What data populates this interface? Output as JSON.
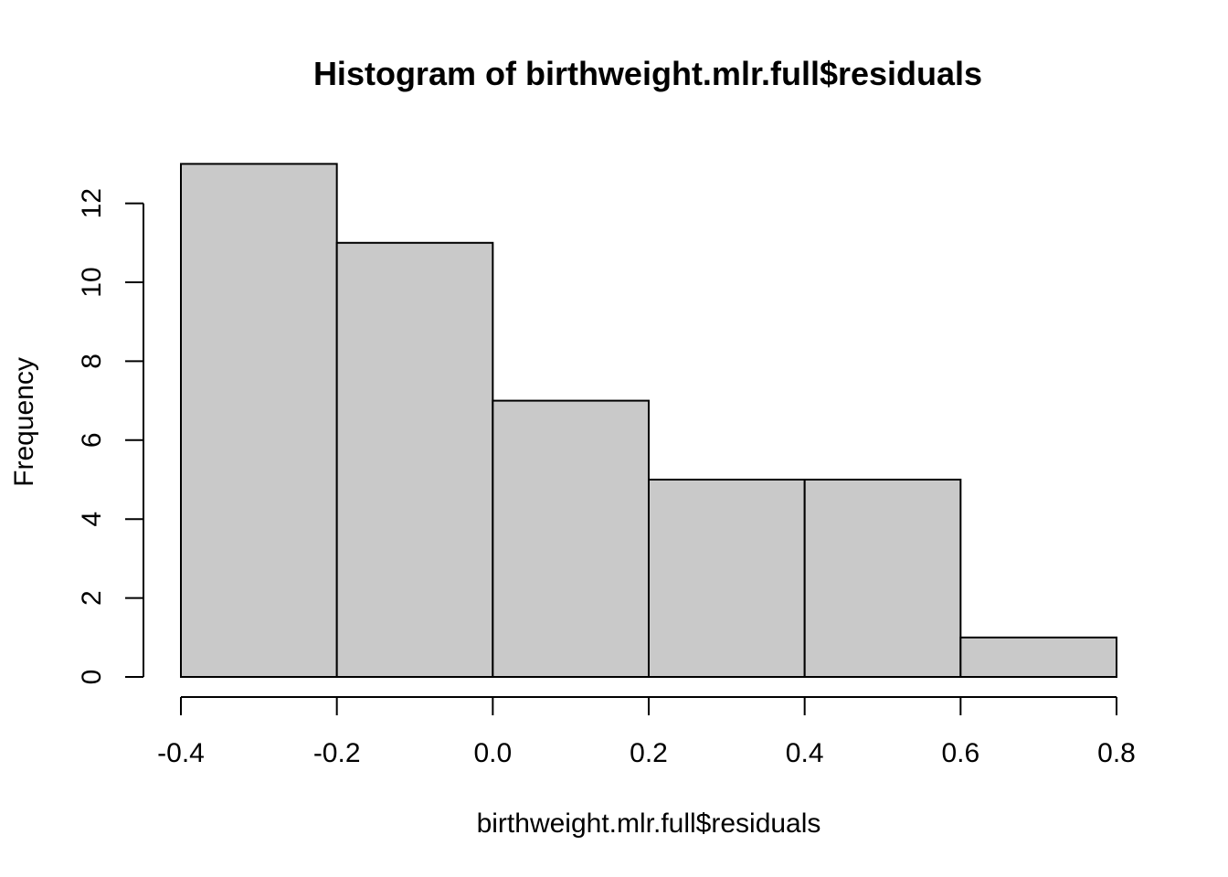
{
  "chart_data": {
    "type": "bar",
    "subtype": "histogram",
    "title": "Histogram of birthweight.mlr.full$residuals",
    "xlabel": "birthweight.mlr.full$residuals",
    "ylabel": "Frequency",
    "bins": [
      {
        "start": -0.4,
        "end": -0.2,
        "count": 13
      },
      {
        "start": -0.2,
        "end": 0.0,
        "count": 11
      },
      {
        "start": 0.0,
        "end": 0.2,
        "count": 7
      },
      {
        "start": 0.2,
        "end": 0.4,
        "count": 5
      },
      {
        "start": 0.4,
        "end": 0.6,
        "count": 5
      },
      {
        "start": 0.6,
        "end": 0.8,
        "count": 1
      }
    ],
    "xlim": [
      -0.4,
      0.8
    ],
    "ylim": [
      0,
      13
    ],
    "x_ticks": [
      {
        "value": -0.4,
        "label": "-0.4"
      },
      {
        "value": -0.2,
        "label": "-0.2"
      },
      {
        "value": 0.0,
        "label": "0.0"
      },
      {
        "value": 0.2,
        "label": "0.2"
      },
      {
        "value": 0.4,
        "label": "0.4"
      },
      {
        "value": 0.6,
        "label": "0.6"
      },
      {
        "value": 0.8,
        "label": "0.8"
      }
    ],
    "y_ticks": [
      {
        "value": 0,
        "label": "0"
      },
      {
        "value": 2,
        "label": "2"
      },
      {
        "value": 4,
        "label": "4"
      },
      {
        "value": 6,
        "label": "6"
      },
      {
        "value": 8,
        "label": "8"
      },
      {
        "value": 10,
        "label": "10"
      },
      {
        "value": 12,
        "label": "12"
      }
    ],
    "grid": false,
    "colors": {
      "bar_fill": "#c9c9c9",
      "bar_stroke": "#000000"
    }
  }
}
